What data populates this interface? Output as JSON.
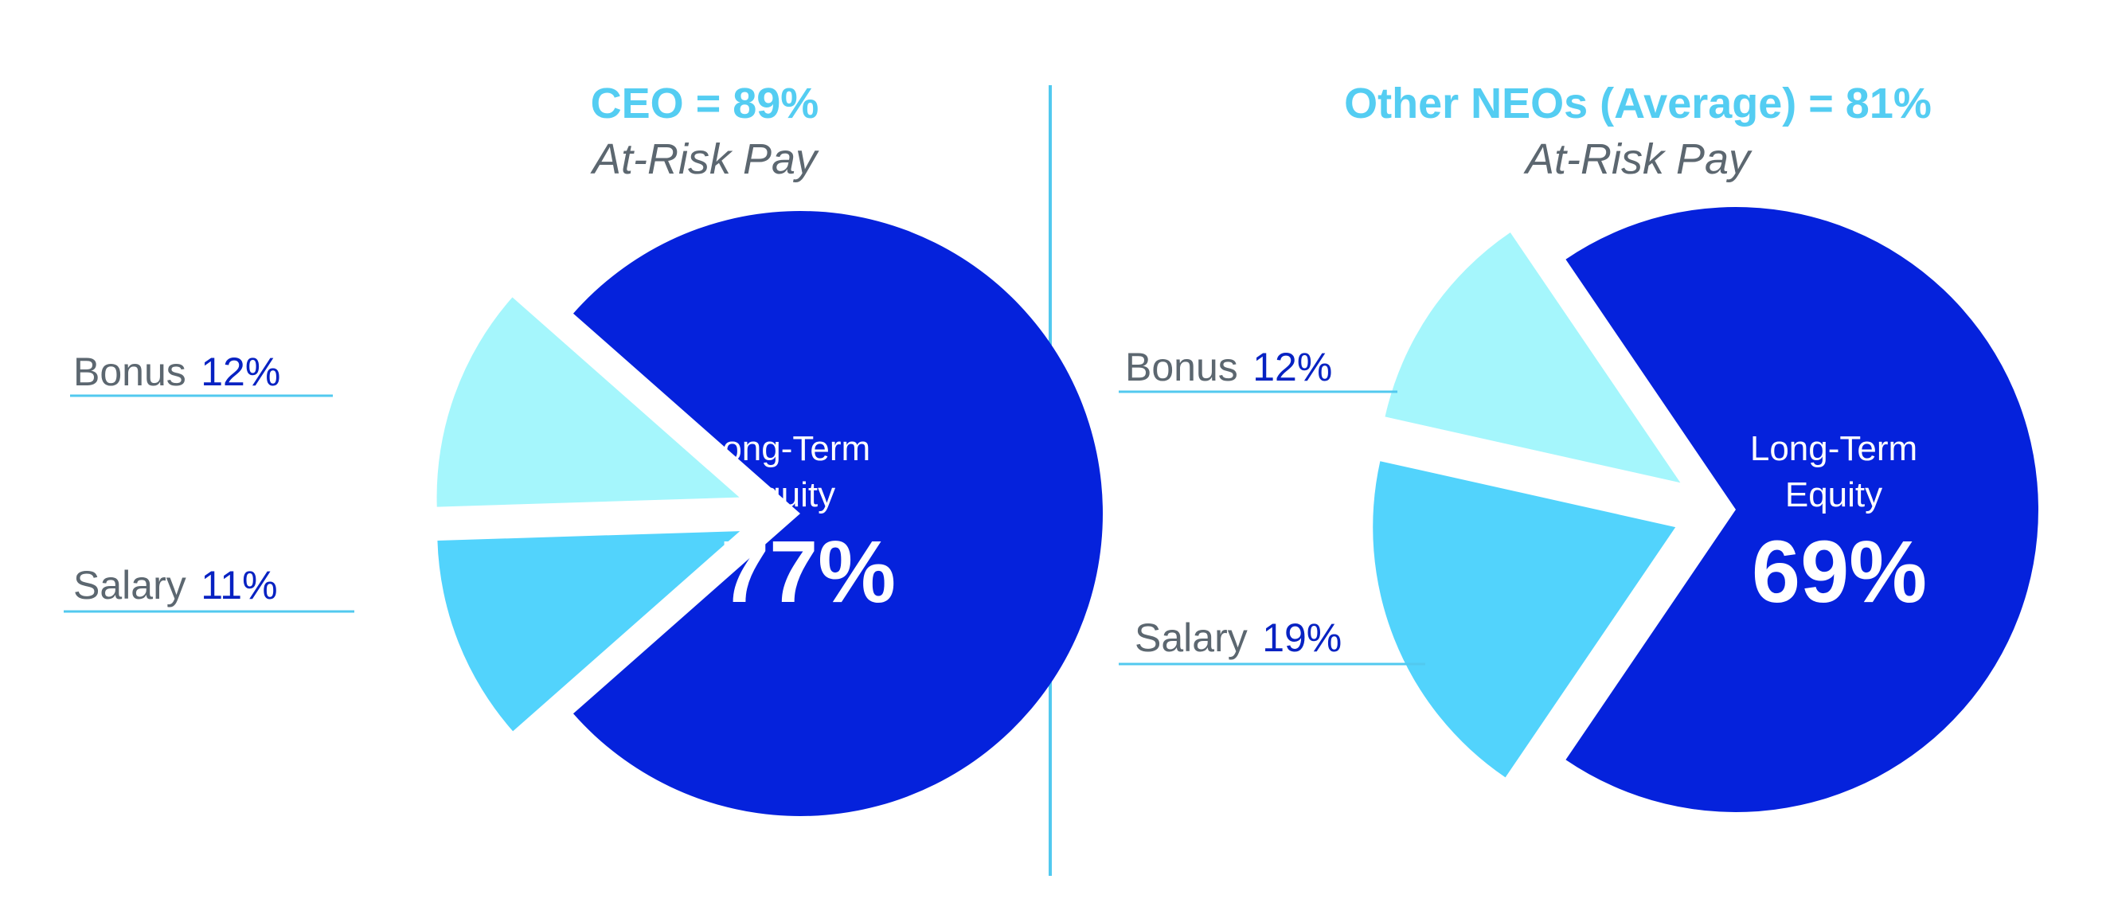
{
  "colors": {
    "equity": "#0522dc",
    "bonus": "#a5f6fc",
    "salary": "#52d3fc",
    "title": "#54cdf2",
    "label_text": "#5c6770",
    "value_text": "#0722c2",
    "leader": "#52c9ef",
    "divider": "#52c9ef"
  },
  "chart_data": [
    {
      "type": "pie",
      "title": "CEO = 89%",
      "subtitle": "At-Risk Pay",
      "slices": [
        {
          "name": "Bonus",
          "value": 12,
          "label": "12%"
        },
        {
          "name": "Salary",
          "value": 11,
          "label": "11%"
        },
        {
          "name": "Long-Term Equity",
          "name_lines": [
            "Long-Term",
            "Equity"
          ],
          "value": 77,
          "label": "77%"
        }
      ]
    },
    {
      "type": "pie",
      "title": "Other NEOs (Average) = 81%",
      "subtitle": "At-Risk Pay",
      "slices": [
        {
          "name": "Bonus",
          "value": 12,
          "label": "12%"
        },
        {
          "name": "Salary",
          "value": 19,
          "label": "19%"
        },
        {
          "name": "Long-Term Equity",
          "name_lines": [
            "Long-Term",
            "Equity"
          ],
          "value": 69,
          "label": "69%"
        }
      ]
    }
  ]
}
